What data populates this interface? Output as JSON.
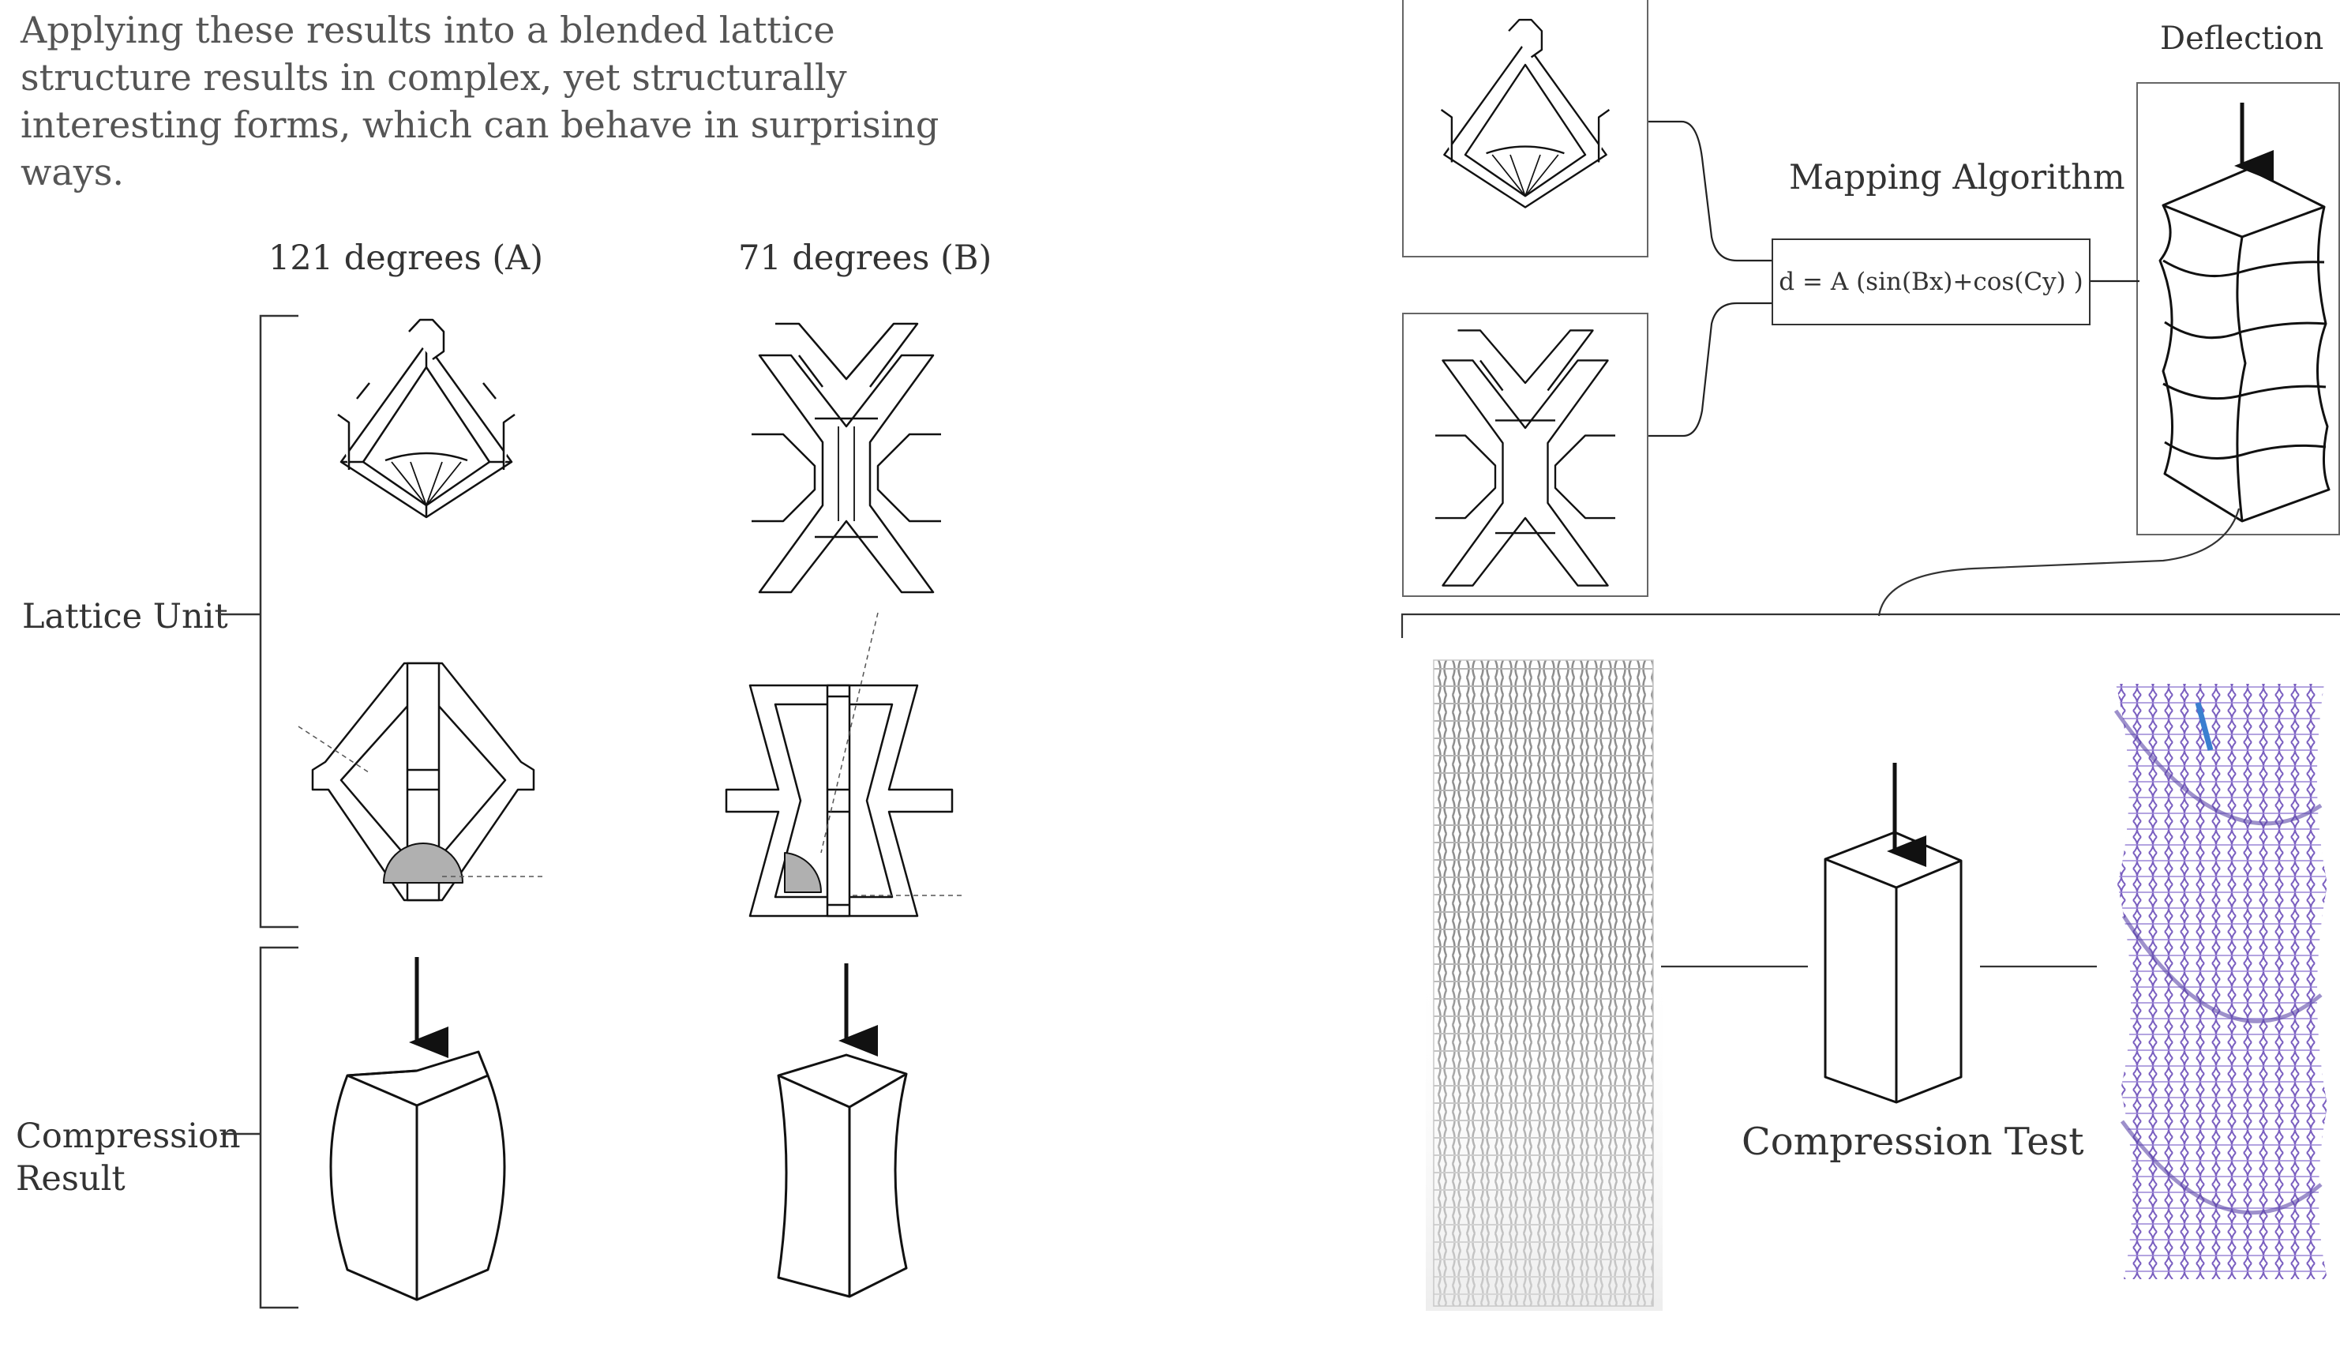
{
  "intro_text": "Applying these results into a blended lattice structure results in complex, yet structurally interesting forms, which can behave in surprising ways.",
  "column_a_label": "121 degrees (A)",
  "column_b_label": "71 degrees (B)",
  "row_labels": {
    "lattice_unit": "Lattice Unit",
    "compression_line1": "Compression",
    "compression_line2": "Result"
  },
  "right_panel": {
    "mapping_title": "Mapping Algorithm",
    "formula": "d = A (sin(Bx)+cos(Cy) )",
    "deflection_title": "Deflection",
    "compression_test": "Compression Test"
  },
  "colors": {
    "ink": "#111111",
    "text": "#333333",
    "sector_fill": "#b0b0b0",
    "lattice_grey": "#9a9a9a",
    "lattice_purple": "#7a5fc0",
    "lattice_blue": "#3a7fd0"
  }
}
